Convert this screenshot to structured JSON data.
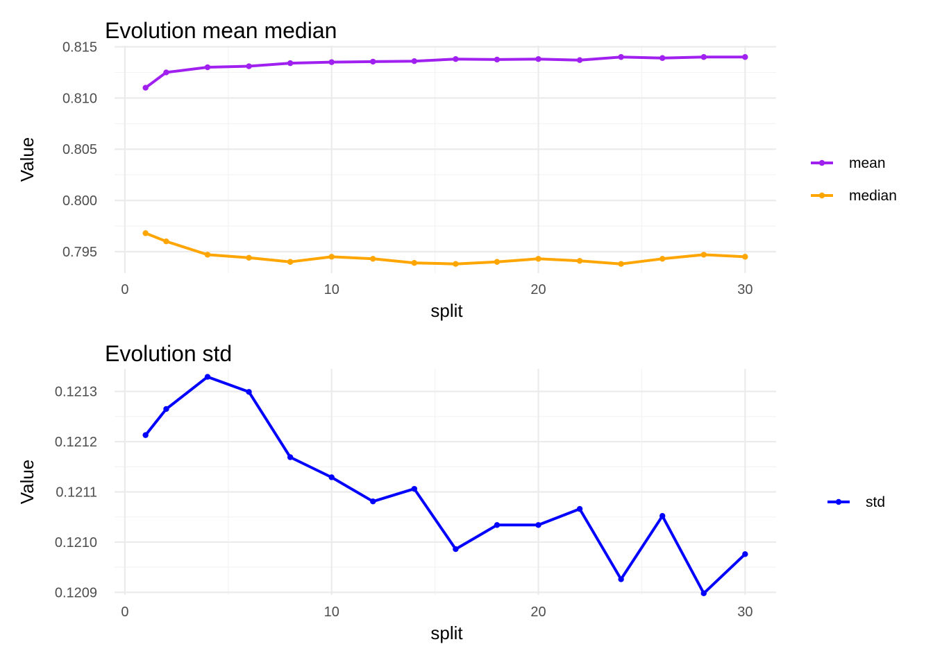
{
  "chart_data": [
    {
      "type": "line",
      "title": "Evolution mean median",
      "xlabel": "split",
      "ylabel": "Value",
      "xlim": [
        -0.5,
        31.5
      ],
      "ylim": [
        0.7929,
        0.8151
      ],
      "x_ticks": [
        0,
        10,
        20,
        30
      ],
      "y_ticks": [
        0.795,
        0.8,
        0.805,
        0.81,
        0.815
      ],
      "y_tick_labels": [
        "0.795",
        "0.800",
        "0.805",
        "0.810",
        "0.815"
      ],
      "grid": true,
      "legend_position": "right",
      "x": [
        1,
        2,
        4,
        6,
        8,
        10,
        12,
        14,
        16,
        18,
        20,
        22,
        24,
        26,
        28,
        30
      ],
      "series": [
        {
          "name": "mean",
          "color": "#a020f0",
          "values": [
            0.811,
            0.8125,
            0.813,
            0.8131,
            0.8134,
            0.8135,
            0.81355,
            0.8136,
            0.8138,
            0.81375,
            0.8138,
            0.8137,
            0.814,
            0.8139,
            0.814,
            0.814
          ]
        },
        {
          "name": "median",
          "color": "#ffa500",
          "values": [
            0.7968,
            0.796,
            0.7947,
            0.7944,
            0.794,
            0.7945,
            0.7943,
            0.7939,
            0.7938,
            0.794,
            0.7943,
            0.7941,
            0.7938,
            0.7943,
            0.7947,
            0.7945
          ]
        }
      ]
    },
    {
      "type": "line",
      "title": "Evolution std",
      "xlabel": "split",
      "ylabel": "Value",
      "xlim": [
        -0.5,
        31.5
      ],
      "ylim": [
        0.120895,
        0.121345
      ],
      "x_ticks": [
        0,
        10,
        20,
        30
      ],
      "y_ticks": [
        0.1209,
        0.121,
        0.1211,
        0.1212,
        0.1213
      ],
      "y_tick_labels": [
        "0.1209",
        "0.1210",
        "0.1211",
        "0.1212",
        "0.1213"
      ],
      "grid": true,
      "legend_position": "right",
      "x": [
        1,
        2,
        4,
        6,
        8,
        10,
        12,
        14,
        16,
        18,
        20,
        22,
        24,
        26,
        28,
        30
      ],
      "series": [
        {
          "name": "std",
          "color": "#0000ff",
          "values": [
            0.121213,
            0.121265,
            0.121329,
            0.121299,
            0.121169,
            0.121129,
            0.121081,
            0.121106,
            0.120986,
            0.121034,
            0.121034,
            0.121066,
            0.120926,
            0.121052,
            0.120898,
            0.120976
          ]
        }
      ]
    }
  ]
}
